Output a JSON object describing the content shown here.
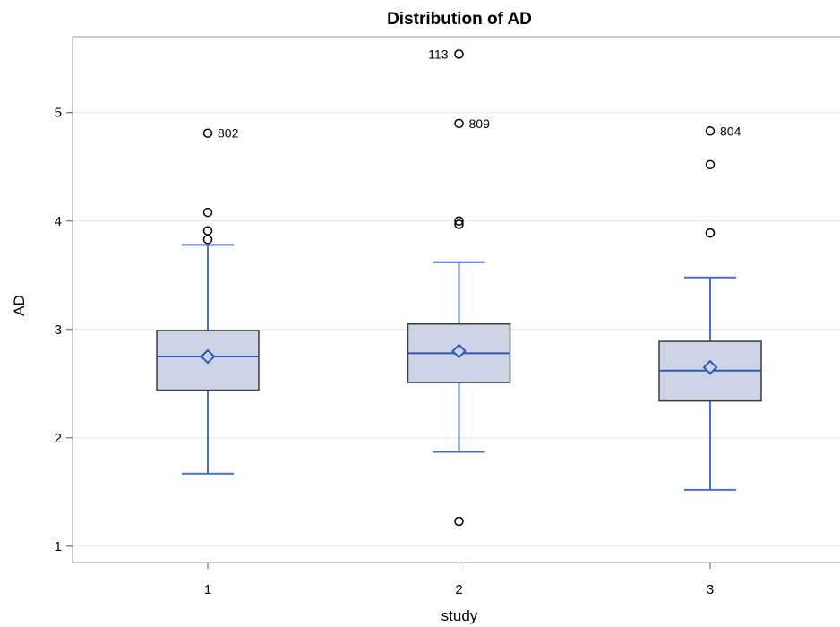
{
  "chart_data": {
    "type": "box",
    "title": "Distribution of AD",
    "xlabel": "study",
    "ylabel": "AD",
    "categories": [
      "1",
      "2",
      "3"
    ],
    "y_ticks": [
      "1",
      "2",
      "3",
      "4",
      "5"
    ],
    "ylim": [
      0.85,
      5.7
    ],
    "grid": true,
    "colors": {
      "box_fill": "#cbd5e6",
      "box_stroke": "#3b3b3b",
      "whisker": "#4a6fc4",
      "median": "#3157b7",
      "mean": "#3157b7",
      "outlier": "#000000",
      "grid": "#e6e6e6",
      "frame": "#9a9a9a"
    },
    "boxes": [
      {
        "category": "1",
        "q1": 2.44,
        "median": 2.75,
        "q3": 2.99,
        "whisker_low": 1.67,
        "whisker_high": 3.78,
        "mean": 2.75,
        "outliers": [
          {
            "value": 3.83,
            "label": ""
          },
          {
            "value": 3.91,
            "label": ""
          },
          {
            "value": 4.08,
            "label": ""
          },
          {
            "value": 4.81,
            "label": "802"
          }
        ]
      },
      {
        "category": "2",
        "q1": 2.51,
        "median": 2.78,
        "q3": 3.05,
        "whisker_low": 1.87,
        "whisker_high": 3.62,
        "mean": 2.8,
        "outliers": [
          {
            "value": 1.23,
            "label": ""
          },
          {
            "value": 3.97,
            "label": ""
          },
          {
            "value": 4.0,
            "label": ""
          },
          {
            "value": 4.9,
            "label": "809"
          },
          {
            "value": 5.54,
            "label": "113"
          }
        ]
      },
      {
        "category": "3",
        "q1": 2.34,
        "median": 2.62,
        "q3": 2.89,
        "whisker_low": 1.52,
        "whisker_high": 3.48,
        "mean": 2.65,
        "outliers": [
          {
            "value": 3.89,
            "label": ""
          },
          {
            "value": 3.89,
            "label": ""
          },
          {
            "value": 4.52,
            "label": ""
          },
          {
            "value": 4.83,
            "label": "804"
          }
        ]
      }
    ]
  }
}
